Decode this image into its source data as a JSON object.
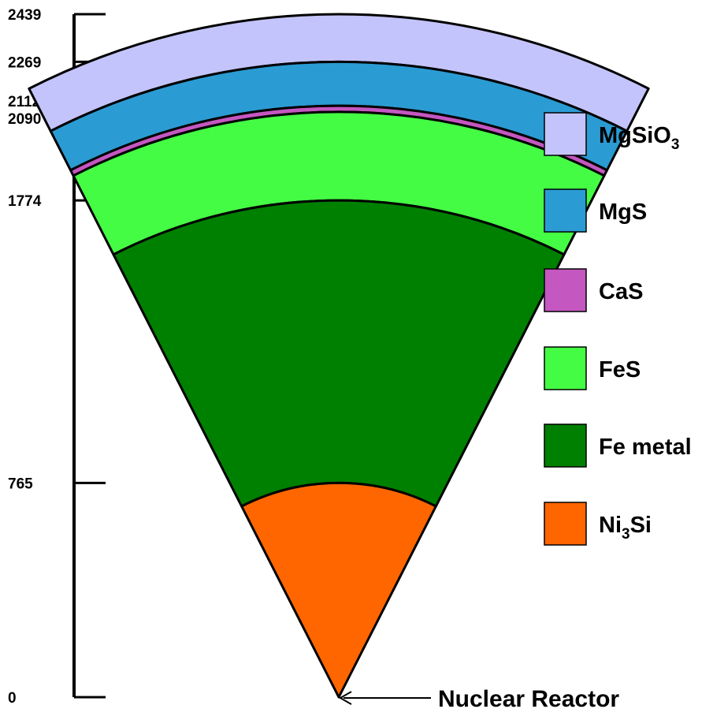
{
  "scale": {
    "ticks": [
      {
        "value": 2439,
        "label": "2439"
      },
      {
        "value": 2269,
        "label": "2269"
      },
      {
        "value": 2112,
        "label": "2112"
      },
      {
        "value": 2090,
        "label": "2090"
      },
      {
        "value": 1774,
        "label": "1774"
      },
      {
        "value": 765,
        "label": "765"
      },
      {
        "value": 0,
        "label": "0"
      }
    ]
  },
  "layers": [
    {
      "id": "mgsio3",
      "inner": 2269,
      "outer": 2439,
      "color": "#c4c4fc"
    },
    {
      "id": "mgs",
      "inner": 2112,
      "outer": 2269,
      "color": "#2b9bd3"
    },
    {
      "id": "cas",
      "inner": 2090,
      "outer": 2112,
      "color": "#c457c0"
    },
    {
      "id": "fes",
      "inner": 1774,
      "outer": 2090,
      "color": "#44fc44"
    },
    {
      "id": "fe-metal",
      "inner": 765,
      "outer": 1774,
      "color": "#008000"
    },
    {
      "id": "ni3si",
      "inner": 0,
      "outer": 765,
      "color": "#ff6600"
    }
  ],
  "legend": [
    {
      "id": "mgsio3",
      "main": "MgSiO",
      "sub": "3",
      "tail": "",
      "color": "#c4c4fc"
    },
    {
      "id": "mgs",
      "main": "MgS",
      "sub": "",
      "tail": "",
      "color": "#2b9bd3"
    },
    {
      "id": "cas",
      "main": "CaS",
      "sub": "",
      "tail": "",
      "color": "#c457c0"
    },
    {
      "id": "fes",
      "main": "FeS",
      "sub": "",
      "tail": "",
      "color": "#44fc44"
    },
    {
      "id": "fe-metal",
      "main": "Fe metal",
      "sub": "",
      "tail": "",
      "color": "#008000"
    },
    {
      "id": "ni3si",
      "main": "Ni",
      "sub": "3",
      "tail": "Si",
      "color": "#ff6600"
    }
  ],
  "annotation": {
    "label": "Nuclear Reactor"
  }
}
